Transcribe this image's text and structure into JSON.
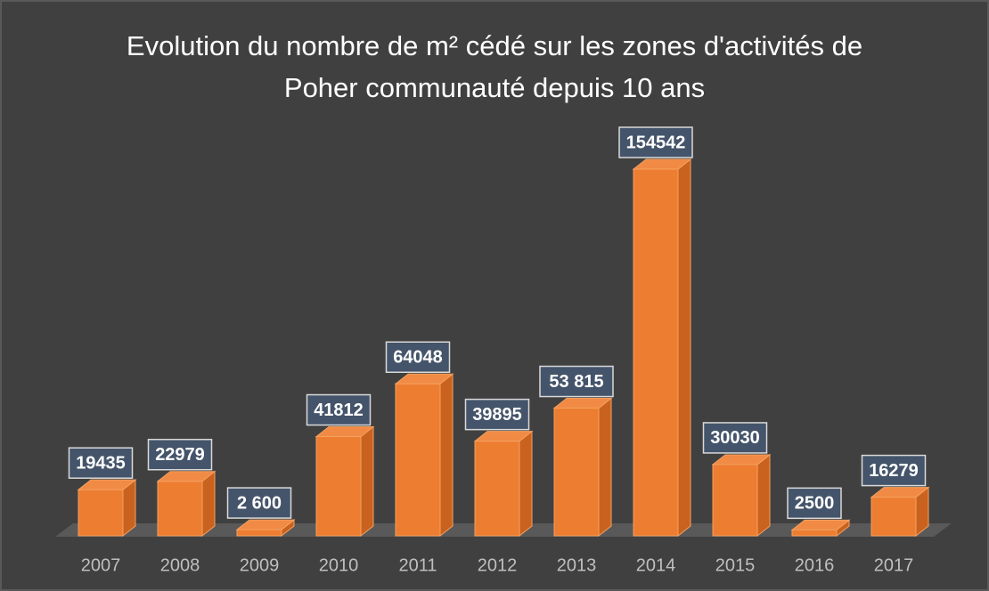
{
  "chart_data": {
    "type": "bar3d",
    "title": "Evolution du nombre de m² cédé sur les zones d'activités de Poher communauté depuis 10 ans",
    "categories": [
      "2007",
      "2008",
      "2009",
      "2010",
      "2011",
      "2012",
      "2013",
      "2014",
      "2015",
      "2016",
      "2017"
    ],
    "values": [
      19435,
      22979,
      2600,
      41812,
      64048,
      39895,
      53815,
      154542,
      30030,
      2500,
      16279
    ],
    "value_labels": [
      "19435",
      "22979",
      "2 600",
      "41812",
      "64048",
      "39895",
      "53 815",
      "154542",
      "30030",
      "2500",
      "16279"
    ],
    "color": "#ed7d31"
  }
}
